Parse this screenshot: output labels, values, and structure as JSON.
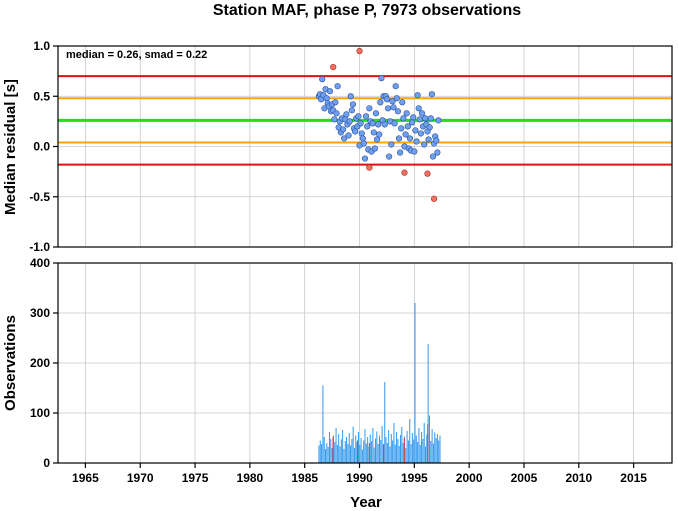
{
  "chart_data": {
    "title": "Station MAF, phase P, 7973 observations",
    "xlabel": "Year",
    "xlim": [
      1962.5,
      2018.5
    ],
    "x_ticks": [
      1965,
      1970,
      1975,
      1980,
      1985,
      1990,
      1995,
      2000,
      2005,
      2010,
      2015
    ],
    "grid": true,
    "colors": {
      "points": "#6fa0f0",
      "outliers": "#f27060",
      "median": "#22dd22",
      "smad": "#ffa500",
      "limit": "#dd1111",
      "bars": "#3399ee",
      "bar_outliers": "#ee3333"
    },
    "panels": [
      {
        "type": "scatter",
        "ylabel": "Median residual [s]",
        "ylim": [
          -1.0,
          1.0
        ],
        "y_tick_values": [
          -1.0,
          -0.5,
          0.0,
          0.5,
          1.0
        ],
        "y_tick_labels": [
          "-1.0",
          "-0.5",
          "0.0",
          "0.5",
          "1.0"
        ],
        "annotation": "median = 0.26, smad = 0.22",
        "hlines": [
          {
            "kind": "limit",
            "y": 0.7
          },
          {
            "kind": "smad",
            "y": 0.48
          },
          {
            "kind": "median",
            "y": 0.26
          },
          {
            "kind": "smad",
            "y": 0.04
          },
          {
            "kind": "limit",
            "y": -0.18
          }
        ],
        "points": [
          [
            1986.3,
            0.5
          ],
          [
            1986.4,
            0.52
          ],
          [
            1986.5,
            0.47
          ],
          [
            1986.6,
            0.67
          ],
          [
            1986.7,
            0.51
          ],
          [
            1986.8,
            0.38
          ],
          [
            1986.9,
            0.57
          ],
          [
            1987.0,
            0.48
          ],
          [
            1987.1,
            0.43
          ],
          [
            1987.2,
            0.4
          ],
          [
            1987.3,
            0.55
          ],
          [
            1987.4,
            0.35
          ],
          [
            1987.5,
            0.42
          ],
          [
            1987.6,
            0.36
          ],
          [
            1987.7,
            0.27
          ],
          [
            1987.8,
            0.44
          ],
          [
            1987.9,
            0.33
          ],
          [
            1988.0,
            0.6
          ],
          [
            1988.1,
            0.19
          ],
          [
            1988.2,
            0.25
          ],
          [
            1988.3,
            0.14
          ],
          [
            1988.4,
            0.28
          ],
          [
            1988.5,
            0.17
          ],
          [
            1988.6,
            0.08
          ],
          [
            1988.7,
            0.27
          ],
          [
            1988.8,
            0.32
          ],
          [
            1988.9,
            0.22
          ],
          [
            1989.0,
            0.11
          ],
          [
            1989.1,
            0.25
          ],
          [
            1989.2,
            0.5
          ],
          [
            1989.3,
            0.36
          ],
          [
            1989.4,
            0.42
          ],
          [
            1989.5,
            0.18
          ],
          [
            1989.6,
            0.15
          ],
          [
            1989.7,
            0.28
          ],
          [
            1989.8,
            0.2
          ],
          [
            1989.9,
            0.3
          ],
          [
            1990.0,
            0.01
          ],
          [
            1990.1,
            0.23
          ],
          [
            1990.2,
            0.13
          ],
          [
            1990.3,
            0.08
          ],
          [
            1990.4,
            0.03
          ],
          [
            1990.5,
            -0.12
          ],
          [
            1990.6,
            0.3
          ],
          [
            1990.7,
            0.2
          ],
          [
            1990.8,
            -0.03
          ],
          [
            1990.9,
            0.38
          ],
          [
            1991.0,
            0.25
          ],
          [
            1991.1,
            -0.05
          ],
          [
            1991.2,
            0.23
          ],
          [
            1991.3,
            0.14
          ],
          [
            1991.4,
            -0.02
          ],
          [
            1991.5,
            0.33
          ],
          [
            1991.6,
            0.07
          ],
          [
            1991.7,
            0.22
          ],
          [
            1991.8,
            0.12
          ],
          [
            1991.9,
            0.44
          ],
          [
            1992.0,
            0.68
          ],
          [
            1992.1,
            0.26
          ],
          [
            1992.2,
            0.5
          ],
          [
            1992.3,
            0.22
          ],
          [
            1992.4,
            0.5
          ],
          [
            1992.5,
            0.47
          ],
          [
            1992.6,
            0.38
          ],
          [
            1992.7,
            -0.1
          ],
          [
            1992.8,
            0.25
          ],
          [
            1992.9,
            0.02
          ],
          [
            1993.0,
            0.45
          ],
          [
            1993.1,
            0.39
          ],
          [
            1993.2,
            0.23
          ],
          [
            1993.3,
            0.6
          ],
          [
            1993.4,
            0.48
          ],
          [
            1993.5,
            0.35
          ],
          [
            1993.6,
            0.08
          ],
          [
            1993.7,
            -0.06
          ],
          [
            1993.8,
            0.18
          ],
          [
            1993.9,
            0.44
          ],
          [
            1994.0,
            0.28
          ],
          [
            1994.1,
            0.0
          ],
          [
            1994.2,
            0.12
          ],
          [
            1994.3,
            0.33
          ],
          [
            1994.4,
            0.2
          ],
          [
            1994.5,
            -0.02
          ],
          [
            1994.6,
            0.08
          ],
          [
            1994.7,
            -0.04
          ],
          [
            1994.8,
            0.24
          ],
          [
            1994.9,
            0.29
          ],
          [
            1995.0,
            -0.05
          ],
          [
            1995.1,
            0.16
          ],
          [
            1995.2,
            0.05
          ],
          [
            1995.3,
            0.51
          ],
          [
            1995.4,
            0.38
          ],
          [
            1995.5,
            0.27
          ],
          [
            1995.6,
            0.13
          ],
          [
            1995.7,
            0.33
          ],
          [
            1995.8,
            0.2
          ],
          [
            1995.9,
            0.02
          ],
          [
            1996.0,
            0.28
          ],
          [
            1996.1,
            0.22
          ],
          [
            1996.2,
            0.15
          ],
          [
            1996.3,
            0.07
          ],
          [
            1996.4,
            0.19
          ],
          [
            1996.5,
            0.28
          ],
          [
            1996.6,
            0.52
          ],
          [
            1996.7,
            -0.1
          ],
          [
            1996.8,
            0.03
          ],
          [
            1996.9,
            0.1
          ],
          [
            1997.0,
            0.06
          ],
          [
            1997.1,
            -0.06
          ],
          [
            1997.2,
            0.26
          ]
        ],
        "outliers": [
          [
            1987.6,
            0.79
          ],
          [
            1990.0,
            0.95
          ],
          [
            1990.9,
            -0.21
          ],
          [
            1994.1,
            -0.26
          ],
          [
            1996.2,
            -0.27
          ],
          [
            1996.8,
            -0.52
          ]
        ]
      },
      {
        "type": "bar",
        "ylabel": "Observations",
        "ylim": [
          0,
          400
        ],
        "y_tick_values": [
          0,
          100,
          200,
          300,
          400
        ],
        "y_tick_labels": [
          "0",
          "100",
          "200",
          "300",
          "400"
        ],
        "bar_width_years": 0.085,
        "bars": [
          [
            1986.3,
            35
          ],
          [
            1986.42,
            45
          ],
          [
            1986.54,
            38
          ],
          [
            1986.66,
            155
          ],
          [
            1986.78,
            52
          ],
          [
            1986.9,
            28
          ],
          [
            1987.02,
            40
          ],
          [
            1987.14,
            32
          ],
          [
            1987.26,
            62
          ],
          [
            1987.38,
            48
          ],
          [
            1987.5,
            30
          ],
          [
            1987.62,
            55
          ],
          [
            1987.74,
            42
          ],
          [
            1987.86,
            70
          ],
          [
            1987.98,
            36
          ],
          [
            1988.1,
            58
          ],
          [
            1988.22,
            33
          ],
          [
            1988.34,
            47
          ],
          [
            1988.46,
            66
          ],
          [
            1988.58,
            28
          ],
          [
            1988.7,
            44
          ],
          [
            1988.82,
            52
          ],
          [
            1988.94,
            38
          ],
          [
            1989.06,
            60
          ],
          [
            1989.18,
            35
          ],
          [
            1989.3,
            48
          ],
          [
            1989.42,
            73
          ],
          [
            1989.54,
            30
          ],
          [
            1989.66,
            55
          ],
          [
            1989.78,
            41
          ],
          [
            1989.9,
            62
          ],
          [
            1990.02,
            36
          ],
          [
            1990.14,
            50
          ],
          [
            1990.26,
            27
          ],
          [
            1990.38,
            45
          ],
          [
            1990.5,
            68
          ],
          [
            1990.62,
            39
          ],
          [
            1990.74,
            52
          ],
          [
            1990.86,
            33
          ],
          [
            1990.98,
            57
          ],
          [
            1991.1,
            44
          ],
          [
            1991.22,
            70
          ],
          [
            1991.34,
            31
          ],
          [
            1991.46,
            49
          ],
          [
            1991.58,
            63
          ],
          [
            1991.7,
            38
          ],
          [
            1991.82,
            55
          ],
          [
            1991.94,
            46
          ],
          [
            1992.06,
            74
          ],
          [
            1992.18,
            35
          ],
          [
            1992.3,
            162
          ],
          [
            1992.42,
            52
          ],
          [
            1992.54,
            40
          ],
          [
            1992.66,
            66
          ],
          [
            1992.78,
            33
          ],
          [
            1992.9,
            58
          ],
          [
            1993.02,
            45
          ],
          [
            1993.14,
            80
          ],
          [
            1993.26,
            37
          ],
          [
            1993.38,
            62
          ],
          [
            1993.5,
            48
          ],
          [
            1993.62,
            34
          ],
          [
            1993.74,
            56
          ],
          [
            1993.86,
            72
          ],
          [
            1993.98,
            40
          ],
          [
            1994.1,
            53
          ],
          [
            1994.22,
            30
          ],
          [
            1994.34,
            64
          ],
          [
            1994.46,
            45
          ],
          [
            1994.58,
            88
          ],
          [
            1994.7,
            38
          ],
          [
            1994.82,
            60
          ],
          [
            1994.94,
            47
          ],
          [
            1995.06,
            320
          ],
          [
            1995.18,
            55
          ],
          [
            1995.3,
            42
          ],
          [
            1995.42,
            70
          ],
          [
            1995.54,
            36
          ],
          [
            1995.66,
            62
          ],
          [
            1995.78,
            48
          ],
          [
            1995.9,
            80
          ],
          [
            1996.02,
            33
          ],
          [
            1996.14,
            57
          ],
          [
            1996.26,
            238
          ],
          [
            1996.38,
            95
          ],
          [
            1996.5,
            44
          ],
          [
            1996.62,
            68
          ],
          [
            1996.74,
            39
          ],
          [
            1996.86,
            61
          ],
          [
            1996.98,
            50
          ],
          [
            1997.1,
            58
          ],
          [
            1997.22,
            45
          ],
          [
            1997.34,
            55
          ]
        ],
        "outlier_bars": [
          [
            1987.58,
            52
          ],
          [
            1989.82,
            45
          ],
          [
            1990.9,
            40
          ],
          [
            1992.2,
            38
          ],
          [
            1994.08,
            50
          ],
          [
            1996.22,
            78
          ]
        ]
      }
    ]
  }
}
